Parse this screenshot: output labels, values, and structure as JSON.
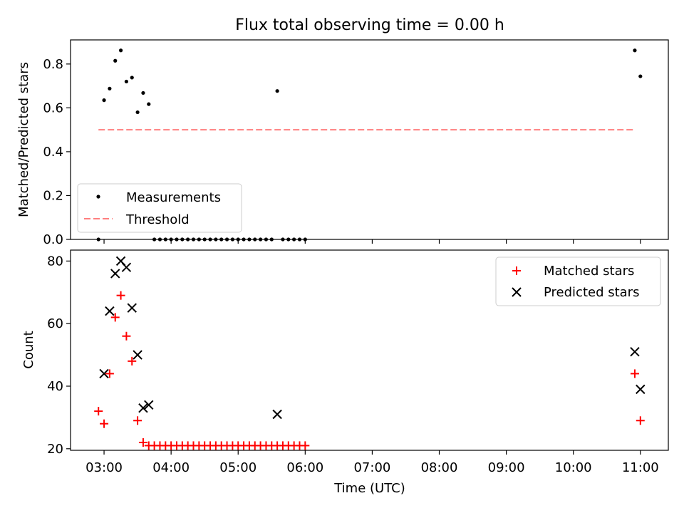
{
  "chart_data": [
    {
      "type": "scatter",
      "title": "Flux total observing time = 0.00 h",
      "xlabel": "",
      "ylabel": "Matched/Predicted stars",
      "xlim": [
        "02:30",
        "11:25"
      ],
      "ylim": [
        0,
        0.91
      ],
      "yticks": [
        0.0,
        0.2,
        0.4,
        0.6,
        0.8
      ],
      "ytick_labels": [
        "0.0",
        "0.2",
        "0.4",
        "0.6",
        "0.8"
      ],
      "legend_position": "lower-left",
      "series": [
        {
          "name": "Measurements",
          "marker": "dot",
          "color": "#000000",
          "points": [
            [
              "02:55",
              0.0
            ],
            [
              "03:00",
              0.635
            ],
            [
              "03:05",
              0.688
            ],
            [
              "03:10",
              0.815
            ],
            [
              "03:15",
              0.862
            ],
            [
              "03:20",
              0.72
            ],
            [
              "03:25",
              0.738
            ],
            [
              "03:30",
              0.58
            ],
            [
              "03:35",
              0.668
            ],
            [
              "03:40",
              0.617
            ],
            [
              "03:45",
              0.0
            ],
            [
              "03:50",
              0.0
            ],
            [
              "03:55",
              0.0
            ],
            [
              "04:00",
              0.0
            ],
            [
              "04:05",
              0.0
            ],
            [
              "04:10",
              0.0
            ],
            [
              "04:15",
              0.0
            ],
            [
              "04:20",
              0.0
            ],
            [
              "04:25",
              0.0
            ],
            [
              "04:30",
              0.0
            ],
            [
              "04:35",
              0.0
            ],
            [
              "04:40",
              0.0
            ],
            [
              "04:45",
              0.0
            ],
            [
              "04:50",
              0.0
            ],
            [
              "04:55",
              0.0
            ],
            [
              "05:00",
              0.0
            ],
            [
              "05:05",
              0.0
            ],
            [
              "05:10",
              0.0
            ],
            [
              "05:15",
              0.0
            ],
            [
              "05:20",
              0.0
            ],
            [
              "05:25",
              0.0
            ],
            [
              "05:30",
              0.0
            ],
            [
              "05:35",
              0.677
            ],
            [
              "05:40",
              0.0
            ],
            [
              "05:45",
              0.0
            ],
            [
              "05:50",
              0.0
            ],
            [
              "05:55",
              0.0
            ],
            [
              "06:00",
              0.0
            ],
            [
              "10:55",
              0.862
            ],
            [
              "11:00",
              0.744
            ]
          ]
        },
        {
          "name": "Threshold",
          "style": "dashed",
          "color": "#ff7f7f",
          "points": [
            [
              "02:55",
              0.5
            ],
            [
              "10:55",
              0.5
            ]
          ]
        }
      ]
    },
    {
      "type": "scatter",
      "xlabel": "Time (UTC)",
      "ylabel": "Count",
      "xlim": [
        "02:30",
        "11:25"
      ],
      "ylim": [
        19.5,
        83.5
      ],
      "xtick_labels": [
        "03:00",
        "04:00",
        "05:00",
        "06:00",
        "07:00",
        "08:00",
        "09:00",
        "10:00",
        "11:00"
      ],
      "yticks": [
        20,
        40,
        60,
        80
      ],
      "ytick_labels": [
        "20",
        "40",
        "60",
        "80"
      ],
      "legend_position": "upper-right",
      "series": [
        {
          "name": "Matched stars",
          "marker": "plus",
          "color": "#ff0000",
          "points": [
            [
              "02:55",
              32
            ],
            [
              "03:00",
              28
            ],
            [
              "03:05",
              44
            ],
            [
              "03:10",
              62
            ],
            [
              "03:15",
              69
            ],
            [
              "03:20",
              56
            ],
            [
              "03:25",
              48
            ],
            [
              "03:30",
              29
            ],
            [
              "03:35",
              22
            ],
            [
              "03:40",
              21
            ],
            [
              "03:45",
              21
            ],
            [
              "03:50",
              21
            ],
            [
              "03:55",
              21
            ],
            [
              "04:00",
              21
            ],
            [
              "04:05",
              21
            ],
            [
              "04:10",
              21
            ],
            [
              "04:15",
              21
            ],
            [
              "04:20",
              21
            ],
            [
              "04:25",
              21
            ],
            [
              "04:30",
              21
            ],
            [
              "04:35",
              21
            ],
            [
              "04:40",
              21
            ],
            [
              "04:45",
              21
            ],
            [
              "04:50",
              21
            ],
            [
              "04:55",
              21
            ],
            [
              "05:00",
              21
            ],
            [
              "05:05",
              21
            ],
            [
              "05:10",
              21
            ],
            [
              "05:15",
              21
            ],
            [
              "05:20",
              21
            ],
            [
              "05:25",
              21
            ],
            [
              "05:30",
              21
            ],
            [
              "05:35",
              21
            ],
            [
              "05:40",
              21
            ],
            [
              "05:45",
              21
            ],
            [
              "05:50",
              21
            ],
            [
              "05:55",
              21
            ],
            [
              "06:00",
              21
            ],
            [
              "10:55",
              44
            ],
            [
              "11:00",
              29
            ]
          ]
        },
        {
          "name": "Predicted stars",
          "marker": "x",
          "color": "#000000",
          "points": [
            [
              "03:00",
              44
            ],
            [
              "03:05",
              64
            ],
            [
              "03:10",
              76
            ],
            [
              "03:15",
              80
            ],
            [
              "03:20",
              78
            ],
            [
              "03:25",
              65
            ],
            [
              "03:30",
              50
            ],
            [
              "03:35",
              33
            ],
            [
              "03:40",
              34
            ],
            [
              "05:35",
              31
            ],
            [
              "10:55",
              51
            ],
            [
              "11:00",
              39
            ]
          ]
        }
      ]
    }
  ]
}
